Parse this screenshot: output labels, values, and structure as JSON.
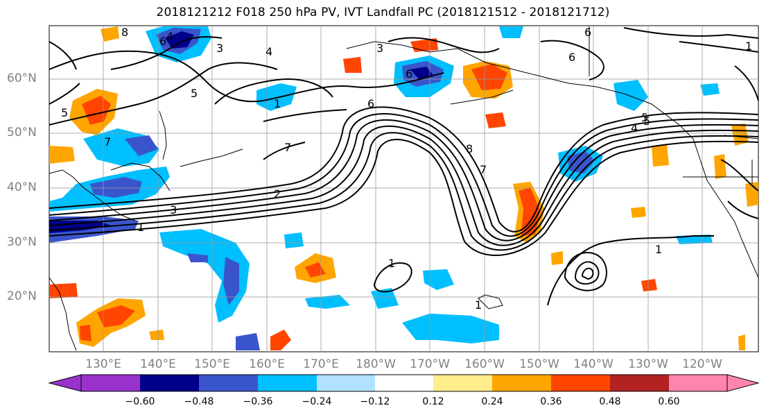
{
  "title": "2018121212 F018 250 hPa PV, IVT Landfall PC (2018121512 - 2018121712)",
  "latitude_labels": [
    "60°N",
    "50°N",
    "40°N",
    "30°N",
    "20°N"
  ],
  "longitude_labels": [
    "130°E",
    "140°E",
    "150°E",
    "160°E",
    "170°E",
    "180°W",
    "170°W",
    "160°W",
    "150°W",
    "140°W",
    "130°W",
    "120°W"
  ],
  "colorbar": {
    "ticks": [
      "−0.60",
      "−0.48",
      "−0.36",
      "−0.24",
      "−0.12",
      "0.12",
      "0.24",
      "0.36",
      "0.48",
      "0.60"
    ],
    "colors": [
      "#9932cc",
      "#00008b",
      "#3a55cc",
      "#00bfff",
      "#b0e2ff",
      "#ffffff",
      "#ffec8b",
      "#ffa500",
      "#ff4500",
      "#b22222",
      "#ff85b0"
    ]
  },
  "contour_labels": [
    "8",
    "6",
    "3",
    "4",
    "5",
    "6",
    "6",
    "6",
    "7",
    "5",
    "3",
    "4",
    "5",
    "1",
    "6",
    "7",
    "8",
    "7",
    "2",
    "3",
    "1",
    "1",
    "1",
    "4",
    "5",
    "1",
    "1"
  ]
}
